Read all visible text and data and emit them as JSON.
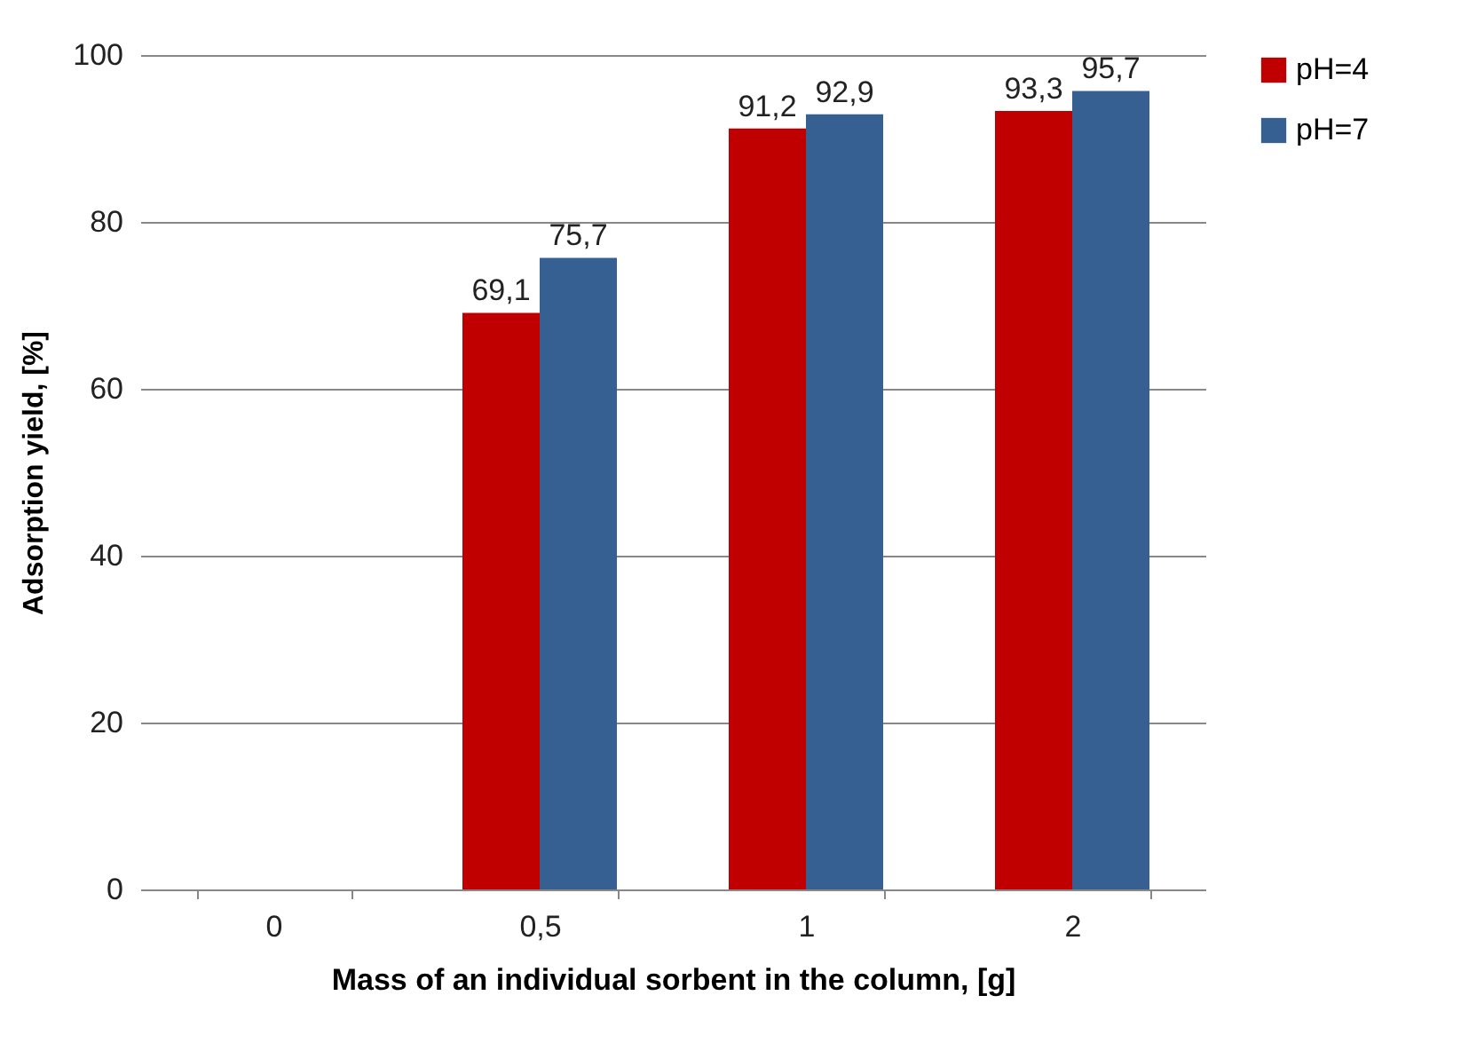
{
  "chart_data": {
    "type": "bar",
    "xlabel": "Mass of an individual sorbent in the column, [g]",
    "ylabel": "Adsorption yield, [%]",
    "categories": [
      "0",
      "0,5",
      "1",
      "2"
    ],
    "series": [
      {
        "name": "pH=4",
        "color": "#c00000",
        "values": [
          null,
          69.1,
          91.2,
          93.3
        ],
        "value_labels": [
          null,
          "69,1",
          "91,2",
          "93,3"
        ]
      },
      {
        "name": "pH=7",
        "color": "#376092",
        "values": [
          null,
          75.7,
          92.9,
          95.7
        ],
        "value_labels": [
          null,
          "75,7",
          "92,9",
          "95,7"
        ]
      }
    ],
    "ylim": [
      0,
      100
    ],
    "yticks": [
      0,
      20,
      40,
      60,
      80,
      100
    ],
    "grid": "y",
    "legend": "right"
  }
}
